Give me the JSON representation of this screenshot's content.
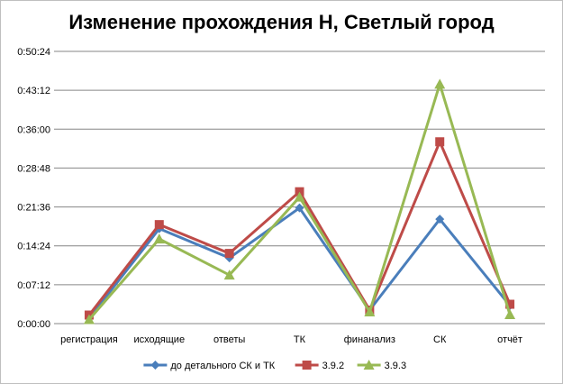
{
  "chart_data": {
    "type": "line",
    "title": "Изменение прохождения Н, Светлый город",
    "xlabel": "",
    "ylabel": "",
    "categories": [
      "регистрация",
      "исходящие",
      "ответы",
      "ТК",
      "финанализ",
      "СК",
      "отчёт"
    ],
    "y_ticks": [
      "0:00:00",
      "0:07:12",
      "0:14:24",
      "0:21:36",
      "0:28:48",
      "0:36:00",
      "0:43:12",
      "0:50:24"
    ],
    "ylim_seconds": [
      0,
      3024
    ],
    "grid": true,
    "legend_position": "bottom",
    "series": [
      {
        "name": "до детального СК и ТК",
        "color": "#4a7ebb",
        "marker": "diamond",
        "values_seconds": [
          60,
          1055,
          730,
          1285,
          150,
          1160,
          200
        ]
      },
      {
        "name": "3.9.2",
        "color": "#be4b48",
        "marker": "square",
        "values_seconds": [
          95,
          1100,
          780,
          1465,
          150,
          2020,
          215
        ]
      },
      {
        "name": "3.9.3",
        "color": "#98b954",
        "marker": "triangle",
        "values_seconds": [
          45,
          940,
          540,
          1405,
          130,
          2660,
          100
        ]
      }
    ]
  }
}
